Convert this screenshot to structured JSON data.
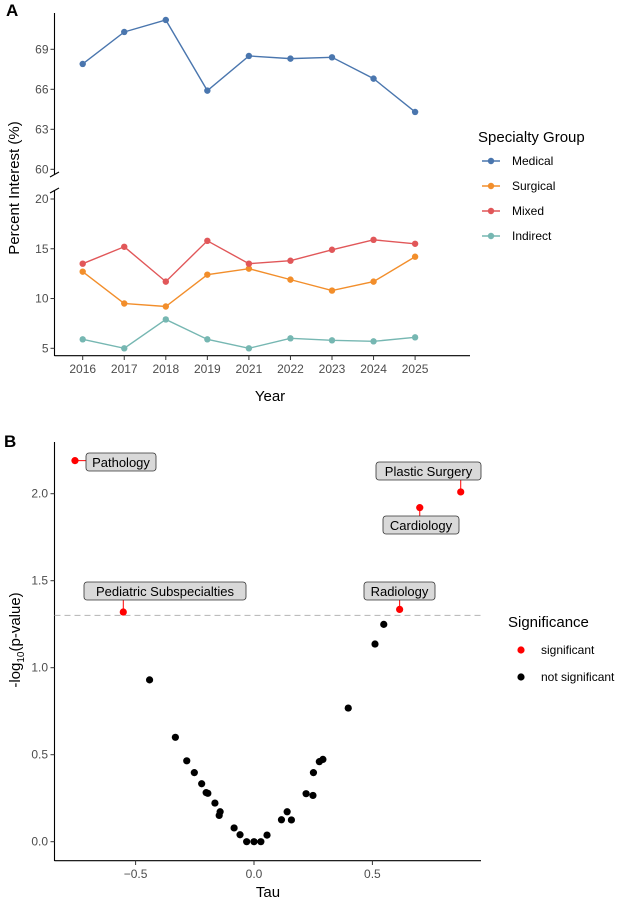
{
  "chart_data": [
    {
      "panel": "A",
      "type": "line",
      "xlabel": "Year",
      "ylabel": "Percent Interest (%)",
      "categories": [
        "2016",
        "2017",
        "2018",
        "2019",
        "2021",
        "2022",
        "2023",
        "2024",
        "2025"
      ],
      "y_axis_break": true,
      "yticks_upper": [
        60,
        63,
        66,
        69
      ],
      "yticks_lower": [
        5,
        10,
        15,
        20
      ],
      "ylim_upper": [
        59.5,
        72
      ],
      "ylim_lower": [
        4.3,
        20.8
      ],
      "grid": false,
      "legend": {
        "title": "Specialty Group",
        "placement": "right"
      },
      "series": [
        {
          "name": "Medical",
          "color": "#4a76ae",
          "values": [
            67.9,
            70.3,
            71.2,
            65.9,
            68.5,
            68.3,
            68.4,
            66.8,
            64.3
          ]
        },
        {
          "name": "Surgical",
          "color": "#f28e2b",
          "values": [
            12.7,
            9.5,
            9.2,
            12.4,
            13.0,
            11.9,
            10.8,
            11.7,
            14.2
          ]
        },
        {
          "name": "Mixed",
          "color": "#e15759",
          "values": [
            13.5,
            15.2,
            11.7,
            15.8,
            13.5,
            13.8,
            14.9,
            15.9,
            15.5
          ]
        },
        {
          "name": "Indirect",
          "color": "#76b7b2",
          "values": [
            5.9,
            5.0,
            7.9,
            5.9,
            5.0,
            6.0,
            5.8,
            5.7,
            6.1
          ]
        }
      ]
    },
    {
      "panel": "B",
      "type": "scatter",
      "xlabel": "Tau",
      "ylabel_main": "-log",
      "ylabel_sub": "10",
      "ylabel_tail": "(p-value)",
      "xticks": [
        -0.5,
        0.0,
        0.5
      ],
      "xtick_labels": [
        "−0.5",
        "0.0",
        "0.5"
      ],
      "yticks": [
        0.0,
        0.5,
        1.0,
        1.5,
        2.0
      ],
      "ytick_labels": [
        "0.0",
        "0.5",
        "1.0",
        "1.5",
        "2.0"
      ],
      "xlim": [
        -0.84,
        0.96
      ],
      "ylim": [
        -0.11,
        2.28
      ],
      "threshold": 1.301,
      "grid": false,
      "legend": {
        "title": "Significance",
        "placement": "right",
        "entries": [
          {
            "name": "significant",
            "color": "#ff0000"
          },
          {
            "name": "not significant",
            "color": "#000000"
          }
        ]
      },
      "significant": [
        {
          "label": "Pathology",
          "x": -0.756,
          "y": 2.19
        },
        {
          "label": "Plastic Surgery",
          "x": 0.873,
          "y": 2.01
        },
        {
          "label": "Cardiology",
          "x": 0.7,
          "y": 1.92
        },
        {
          "label": "Pediatric Subspecialties",
          "x": -0.552,
          "y": 1.32
        },
        {
          "label": "Radiology",
          "x": 0.615,
          "y": 1.335
        }
      ],
      "not_significant": [
        [
          -0.441,
          0.93
        ],
        [
          -0.332,
          0.6
        ],
        [
          -0.284,
          0.465
        ],
        [
          -0.252,
          0.397
        ],
        [
          -0.221,
          0.333
        ],
        [
          -0.202,
          0.282
        ],
        [
          -0.195,
          0.278
        ],
        [
          -0.165,
          0.222
        ],
        [
          -0.143,
          0.172
        ],
        [
          -0.147,
          0.151
        ],
        [
          -0.084,
          0.079
        ],
        [
          -0.059,
          0.04
        ],
        [
          -0.031,
          0.0
        ],
        [
          0.0,
          0.0
        ],
        [
          0.029,
          0.0
        ],
        [
          0.055,
          0.038
        ],
        [
          0.116,
          0.126
        ],
        [
          0.14,
          0.172
        ],
        [
          0.158,
          0.125
        ],
        [
          0.22,
          0.276
        ],
        [
          0.249,
          0.266
        ],
        [
          0.251,
          0.397
        ],
        [
          0.276,
          0.46
        ],
        [
          0.291,
          0.473
        ],
        [
          0.398,
          0.768
        ],
        [
          0.511,
          1.136
        ],
        [
          0.548,
          1.249
        ]
      ]
    }
  ]
}
